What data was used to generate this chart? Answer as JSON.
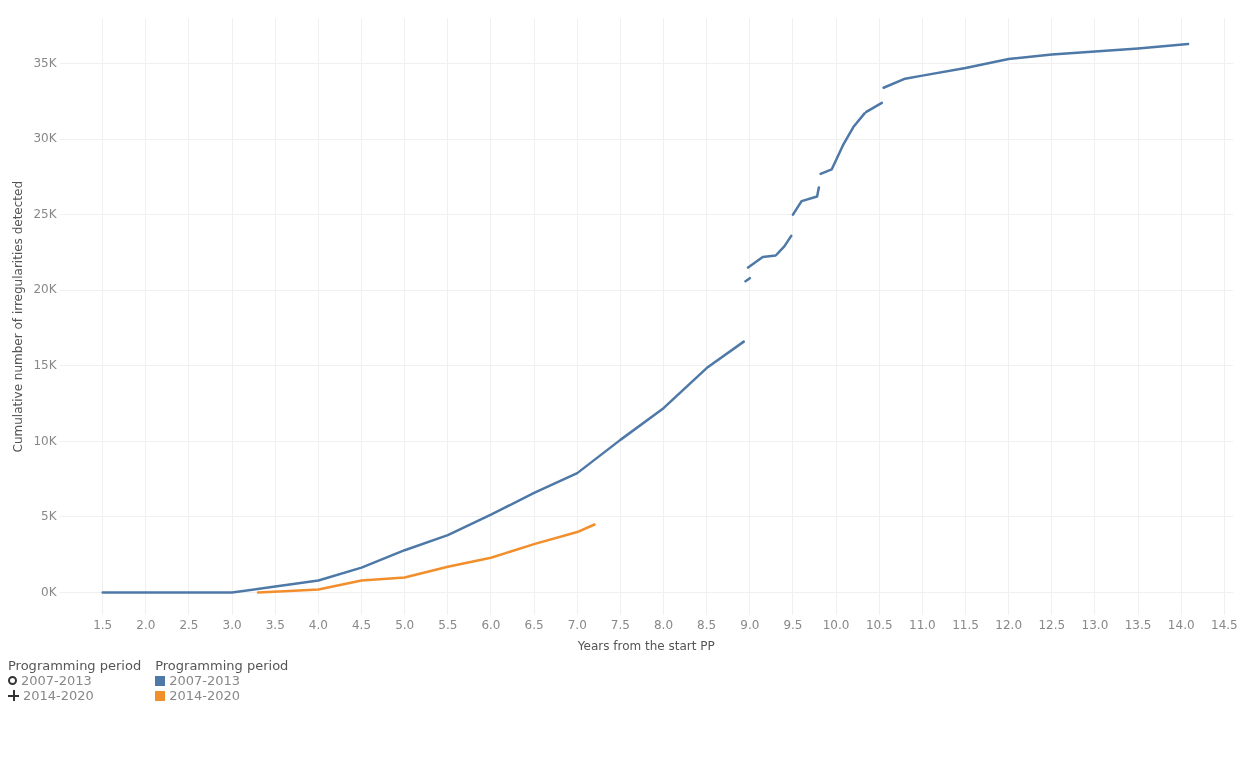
{
  "chart_data": {
    "type": "line",
    "xlabel": "Years from the start PP",
    "ylabel": "Cumulative number of irregularities detected",
    "legend_title": "Programming period",
    "legend": "bottom left",
    "grid": true,
    "marker": "none",
    "line_style": "solid",
    "xlim": [
      1.0,
      14.6
    ],
    "ylim": [
      -1500,
      38000
    ],
    "xticks": [
      {
        "value": 1.5,
        "label": "1.5"
      },
      {
        "value": 2,
        "label": "2.0"
      },
      {
        "value": 2.5,
        "label": "2.5"
      },
      {
        "value": 3,
        "label": "3.0"
      },
      {
        "value": 3.5,
        "label": "3.5"
      },
      {
        "value": 4,
        "label": "4.0"
      },
      {
        "value": 4.5,
        "label": "4.5"
      },
      {
        "value": 5,
        "label": "5.0"
      },
      {
        "value": 5.5,
        "label": "5.5"
      },
      {
        "value": 6,
        "label": "6.0"
      },
      {
        "value": 6.5,
        "label": "6.5"
      },
      {
        "value": 7,
        "label": "7.0"
      },
      {
        "value": 7.5,
        "label": "7.5"
      },
      {
        "value": 8,
        "label": "8.0"
      },
      {
        "value": 8.5,
        "label": "8.5"
      },
      {
        "value": 9,
        "label": "9.0"
      },
      {
        "value": 9.5,
        "label": "9.5"
      },
      {
        "value": 10,
        "label": "10.0"
      },
      {
        "value": 10.5,
        "label": "10.5"
      },
      {
        "value": 11,
        "label": "11.0"
      },
      {
        "value": 11.5,
        "label": "11.5"
      },
      {
        "value": 12,
        "label": "12.0"
      },
      {
        "value": 12.5,
        "label": "12.5"
      },
      {
        "value": 13,
        "label": "13.0"
      },
      {
        "value": 13.5,
        "label": "13.5"
      },
      {
        "value": 14,
        "label": "14.0"
      },
      {
        "value": 14.5,
        "label": "14.5"
      }
    ],
    "yticks": [
      {
        "value": 0,
        "label": "0K"
      },
      {
        "value": 5000,
        "label": "5K"
      },
      {
        "value": 10000,
        "label": "10K"
      },
      {
        "value": 15000,
        "label": "15K"
      },
      {
        "value": 20000,
        "label": "20K"
      },
      {
        "value": 25000,
        "label": "25K"
      },
      {
        "value": 30000,
        "label": "30K"
      },
      {
        "value": 35000,
        "label": "35K"
      }
    ],
    "series": [
      {
        "name": "2007-2013",
        "color": "#4e79a7",
        "x": [
          1.5,
          2.25,
          2.6,
          2.8,
          3.0,
          3.5,
          4.0,
          4.5,
          5.0,
          5.5,
          6.0,
          6.5,
          7.0,
          7.5,
          8.0,
          8.5,
          8.93,
          null,
          8.95,
          9.0,
          null,
          8.98,
          9.15,
          9.3,
          9.4,
          9.48,
          null,
          9.5,
          9.6,
          9.78,
          9.8,
          null,
          9.82,
          9.95,
          10.08,
          10.2,
          10.33,
          null,
          10.35,
          10.53,
          null,
          10.55,
          10.8,
          11.0,
          11.5,
          12.0,
          12.5,
          13.0,
          13.5,
          14.08
        ],
        "values": [
          0,
          0,
          0,
          0,
          0,
          400,
          800,
          1650,
          2800,
          3800,
          5150,
          6600,
          7900,
          10100,
          12200,
          14850,
          16600,
          null,
          20600,
          20800,
          null,
          21500,
          22200,
          22300,
          22900,
          23600,
          null,
          25000,
          25900,
          26200,
          26800,
          null,
          27700,
          28000,
          29600,
          30800,
          31700,
          null,
          31800,
          32400,
          null,
          33400,
          34000,
          34200,
          34700,
          35300,
          35600,
          35800,
          36000,
          36300
        ]
      },
      {
        "name": "2014-2020",
        "color": "#f28e2b",
        "x": [
          3.3,
          3.66,
          4.0,
          4.5,
          5.0,
          5.5,
          6.0,
          6.5,
          7.0,
          7.2
        ],
        "values": [
          0,
          100,
          200,
          800,
          1000,
          1700,
          2300,
          3200,
          4000,
          4500
        ]
      }
    ]
  }
}
